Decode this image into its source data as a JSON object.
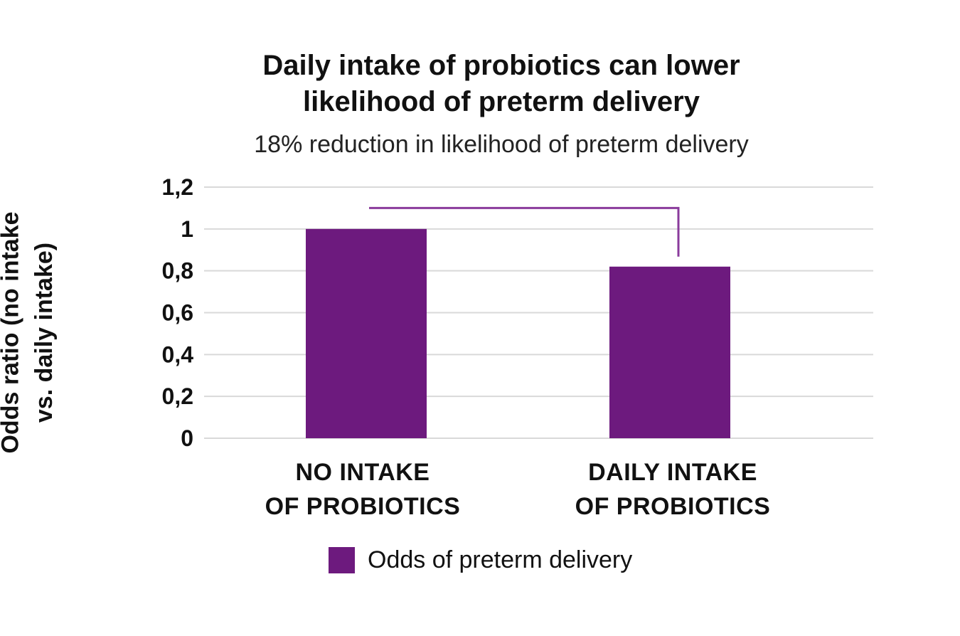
{
  "chart_data": {
    "type": "bar",
    "title_lines": [
      "Daily intake of probiotics can lower",
      "likelihood of preterm delivery"
    ],
    "subtitle": "18% reduction in likelihood of preterm delivery",
    "ylabel_lines": [
      "Odds ratio (no intake",
      "vs. daily intake)"
    ],
    "categories": [
      [
        "NO INTAKE",
        "OF PROBIOTICS"
      ],
      [
        "DAILY INTAKE",
        "OF PROBIOTICS"
      ]
    ],
    "series": [
      {
        "name": "Odds of preterm delivery",
        "values": [
          1.0,
          0.82
        ]
      }
    ],
    "ylim": [
      0,
      1.2
    ],
    "y_ticks": [
      "0",
      "0,2",
      "0,4",
      "0,6",
      "0,8",
      "1",
      "1,2"
    ],
    "grid": true,
    "legend_position": "bottom",
    "colors": {
      "bar": "#6d1a7e",
      "grid": "#d9d9d9",
      "bracket": "#8a3b9c"
    }
  }
}
